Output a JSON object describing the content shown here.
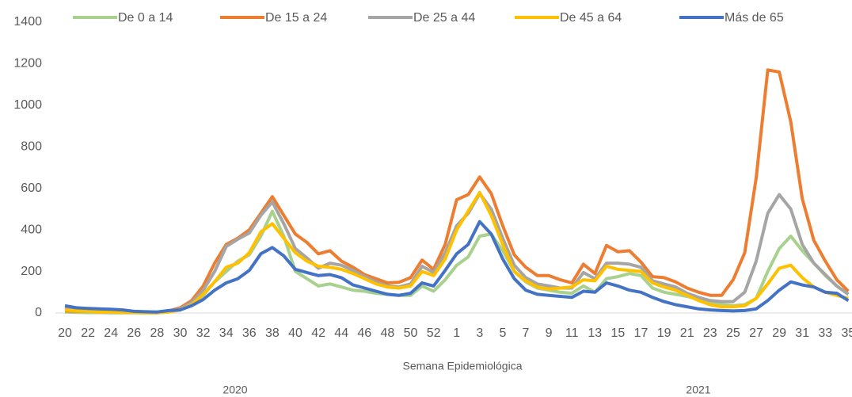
{
  "chart_data": {
    "type": "line",
    "x_label": "Semana Epidemiológica",
    "group_labels": [
      "2020",
      "2021"
    ],
    "categories": [
      "20",
      null,
      "22",
      null,
      "24",
      null,
      "26",
      null,
      "28",
      null,
      "30",
      null,
      "32",
      null,
      "34",
      null,
      "36",
      null,
      "38",
      null,
      "40",
      null,
      "42",
      null,
      "44",
      null,
      "46",
      null,
      "48",
      null,
      "50",
      null,
      "52",
      null,
      "1",
      null,
      "3",
      null,
      "5",
      null,
      "7",
      null,
      "9",
      null,
      "11",
      null,
      "13",
      null,
      "15",
      null,
      "17",
      null,
      "19",
      null,
      "21",
      null,
      "23",
      null,
      "25",
      null,
      "27",
      null,
      "29",
      null,
      "31",
      null,
      "33",
      null,
      "35"
    ],
    "ylim": [
      0,
      1400
    ],
    "yticks": [
      0,
      200,
      400,
      600,
      800,
      1000,
      1200,
      1400
    ],
    "grid": false,
    "legend": "top",
    "series": [
      {
        "name": "De 0 a 14",
        "color": "#a9d18e",
        "values": [
          5,
          3,
          2,
          2,
          1,
          1,
          1,
          1,
          1,
          5,
          15,
          40,
          85,
          150,
          200,
          250,
          280,
          370,
          490,
          370,
          200,
          165,
          130,
          140,
          125,
          110,
          105,
          95,
          90,
          85,
          85,
          130,
          105,
          160,
          230,
          270,
          370,
          380,
          300,
          200,
          150,
          120,
          110,
          100,
          95,
          130,
          100,
          165,
          175,
          190,
          180,
          120,
          100,
          90,
          80,
          65,
          50,
          40,
          35,
          40,
          70,
          200,
          310,
          370,
          300,
          240,
          180,
          130,
          90
        ]
      },
      {
        "name": "De 15 a 24",
        "color": "#ed7d31",
        "values": [
          10,
          8,
          8,
          7,
          7,
          5,
          3,
          3,
          2,
          10,
          25,
          60,
          130,
          240,
          330,
          360,
          400,
          480,
          560,
          470,
          380,
          340,
          285,
          300,
          250,
          220,
          185,
          165,
          145,
          148,
          170,
          255,
          210,
          330,
          545,
          570,
          655,
          575,
          420,
          280,
          220,
          180,
          180,
          160,
          145,
          235,
          190,
          325,
          295,
          300,
          245,
          175,
          170,
          150,
          120,
          100,
          85,
          85,
          160,
          290,
          650,
          1170,
          1160,
          920,
          550,
          350,
          250,
          160,
          105
        ]
      },
      {
        "name": "De 25 a 44",
        "color": "#a5a5a5",
        "values": [
          25,
          15,
          12,
          10,
          8,
          5,
          3,
          2,
          2,
          8,
          20,
          50,
          110,
          200,
          320,
          355,
          385,
          470,
          535,
          430,
          310,
          265,
          215,
          240,
          230,
          205,
          175,
          150,
          130,
          125,
          140,
          225,
          195,
          290,
          420,
          480,
          575,
          500,
          360,
          230,
          170,
          140,
          130,
          120,
          120,
          195,
          165,
          240,
          240,
          235,
          220,
          155,
          140,
          125,
          95,
          75,
          60,
          55,
          55,
          100,
          250,
          480,
          570,
          500,
          330,
          240,
          185,
          130,
          90
        ]
      },
      {
        "name": "De 45 a 64",
        "color": "#ffc000",
        "values": [
          15,
          10,
          8,
          5,
          5,
          3,
          2,
          1,
          1,
          5,
          15,
          40,
          90,
          150,
          220,
          240,
          290,
          390,
          430,
          360,
          290,
          250,
          225,
          220,
          210,
          190,
          165,
          140,
          125,
          120,
          130,
          200,
          180,
          260,
          400,
          490,
          580,
          470,
          330,
          200,
          155,
          125,
          115,
          120,
          125,
          160,
          155,
          225,
          210,
          205,
          200,
          145,
          125,
          110,
          85,
          60,
          40,
          30,
          30,
          35,
          70,
          140,
          215,
          230,
          170,
          125,
          100,
          85,
          70
        ]
      },
      {
        "name": "Más de 65",
        "color": "#4472c4",
        "values": [
          35,
          25,
          22,
          20,
          18,
          15,
          8,
          6,
          5,
          12,
          15,
          35,
          65,
          110,
          145,
          165,
          205,
          285,
          315,
          275,
          210,
          195,
          180,
          185,
          170,
          135,
          120,
          105,
          90,
          85,
          95,
          145,
          130,
          205,
          285,
          330,
          440,
          380,
          260,
          165,
          110,
          90,
          85,
          80,
          75,
          105,
          100,
          145,
          130,
          110,
          100,
          75,
          55,
          40,
          30,
          20,
          15,
          12,
          10,
          12,
          20,
          60,
          110,
          150,
          135,
          125,
          100,
          95,
          60
        ]
      }
    ]
  }
}
